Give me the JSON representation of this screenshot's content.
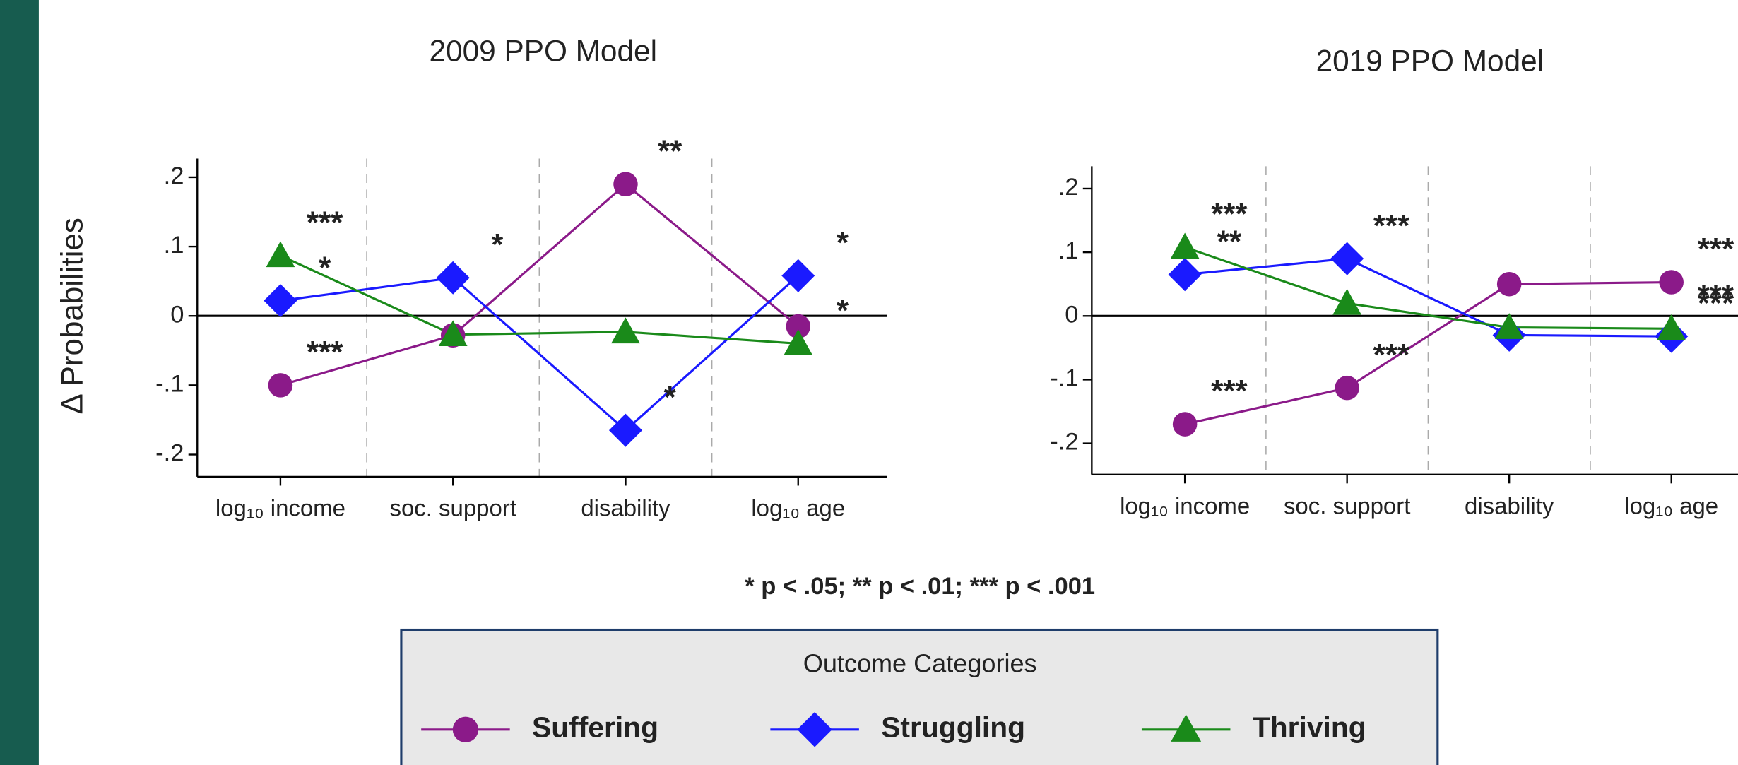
{
  "y_axis_label": "Δ Probabilities",
  "chart_data": [
    {
      "type": "line",
      "title": "2009 PPO Model",
      "categories": [
        "log₁₀ income",
        "soc. support",
        "disability",
        "log₁₀ age"
      ],
      "ylim": [
        -0.232,
        0.227
      ],
      "yticks": [
        {
          "value": 0.2,
          "label": ".2"
        },
        {
          "value": 0.1,
          "label": ".1"
        },
        0,
        {
          "value": -0.1,
          "label": "-.1"
        },
        {
          "value": -0.2,
          "label": "-.2"
        }
      ],
      "series": [
        {
          "name": "Suffering",
          "color": "#8b1a89",
          "marker": "circle",
          "values": [
            -0.1,
            -0.028,
            0.19,
            -0.015
          ],
          "annotations": [
            "***",
            null,
            "**",
            null
          ]
        },
        {
          "name": "Struggling",
          "color": "#1a1aff",
          "marker": "diamond",
          "values": [
            0.022,
            0.055,
            -0.165,
            0.058
          ],
          "annotations": [
            "*",
            "*",
            "*",
            "*"
          ]
        },
        {
          "name": "Thriving",
          "color": "#1a8a1a",
          "marker": "triangle",
          "values": [
            0.087,
            -0.027,
            -0.023,
            -0.04
          ],
          "annotations": [
            "***",
            null,
            null,
            "*"
          ]
        }
      ]
    },
    {
      "type": "line",
      "title": "2019 PPO Model",
      "categories": [
        "log₁₀ income",
        "soc. support",
        "disability",
        "log₁₀ age"
      ],
      "ylim": [
        -0.249,
        0.235
      ],
      "yticks": [
        {
          "value": 0.2,
          "label": ".2"
        },
        {
          "value": 0.1,
          "label": ".1"
        },
        0,
        {
          "value": -0.1,
          "label": "-.1"
        },
        {
          "value": -0.2,
          "label": "-.2"
        }
      ],
      "series": [
        {
          "name": "Suffering",
          "color": "#8b1a89",
          "marker": "circle",
          "values": [
            -0.17,
            -0.113,
            0.05,
            0.053
          ],
          "annotations": [
            "***",
            "***",
            null,
            "***"
          ]
        },
        {
          "name": "Struggling",
          "color": "#1a1aff",
          "marker": "diamond",
          "values": [
            0.065,
            0.09,
            -0.03,
            -0.032
          ],
          "annotations": [
            "**",
            "***",
            null,
            "***"
          ]
        },
        {
          "name": "Thriving",
          "color": "#1a8a1a",
          "marker": "triangle",
          "values": [
            0.108,
            0.02,
            -0.018,
            -0.02
          ],
          "annotations": [
            "***",
            null,
            null,
            "***"
          ]
        }
      ]
    }
  ],
  "note": "* p < .05; ** p < .01; *** p < .001",
  "legend": {
    "title": "Outcome Categories"
  }
}
